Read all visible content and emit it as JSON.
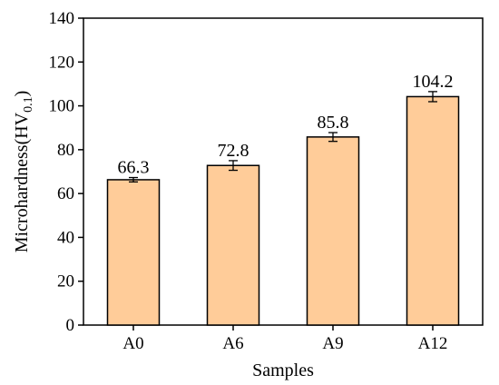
{
  "chart_data": {
    "type": "bar",
    "title": "",
    "xlabel": "Samples",
    "ylabel_main": "Microhardness(HV",
    "ylabel_sub": "0.1",
    "ylabel_close": ")",
    "categories": [
      "A0",
      "A6",
      "A9",
      "A12"
    ],
    "values": [
      66.3,
      72.8,
      85.8,
      104.2
    ],
    "value_labels": [
      "66.3",
      "72.8",
      "85.8",
      "104.2"
    ],
    "errors": [
      1.0,
      2.2,
      2.0,
      2.3
    ],
    "ylim": [
      0,
      140
    ],
    "yticks": [
      0,
      20,
      40,
      60,
      80,
      100,
      120,
      140
    ],
    "grid": false,
    "bar_color": "#FFCC99",
    "edge_color": "#000000"
  }
}
